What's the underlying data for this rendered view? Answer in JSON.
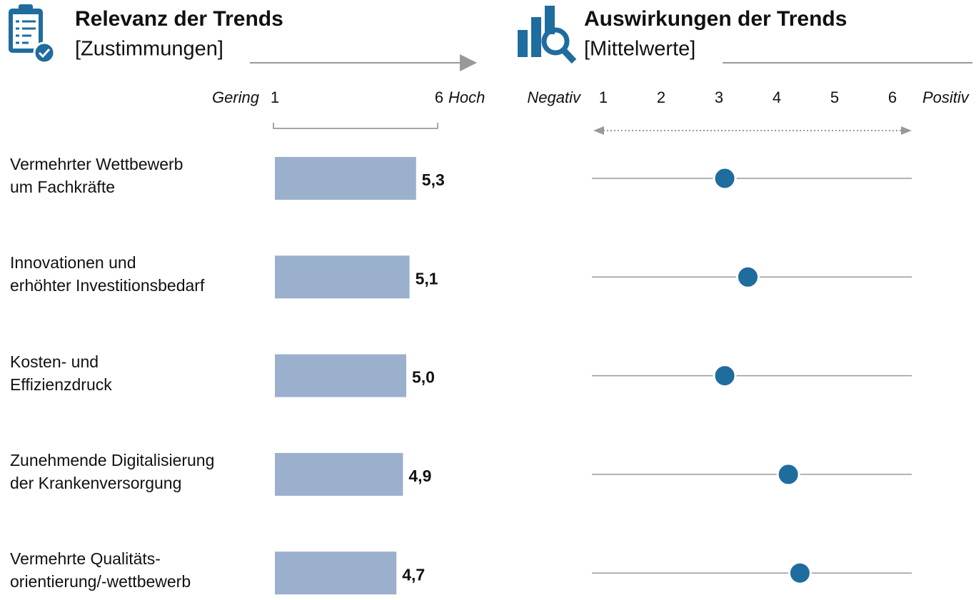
{
  "chart_data": [
    {
      "type": "bar",
      "orientation": "horizontal",
      "title": "Relevanz der Trends",
      "subtitle": "[Zustimmungen]",
      "xlabel_low": "Gering",
      "xlabel_high": "Hoch",
      "categories": [
        "Vermehrter Wettbewerb\num Fachkräfte",
        "Innovationen und\nerhöhter Investitionsbedarf",
        "Kosten- und\nEffizienzdruck",
        "Zunehmende Digitalisierung\nder Krankenversorgung",
        "Vermehrte Qualitäts-\norientierung/-wettbewerb"
      ],
      "values": [
        5.3,
        5.1,
        5.0,
        4.9,
        4.7
      ],
      "value_labels": [
        "5,3",
        "5,1",
        "5,0",
        "4,9",
        "4,7"
      ],
      "color": "#9ab0cc",
      "xlim": [
        1,
        6
      ],
      "xticks": [
        1,
        6
      ]
    },
    {
      "type": "dot",
      "title": "Auswirkungen der Trends",
      "subtitle": "[Mittelwerte]",
      "xlabel_low": "Negativ",
      "xlabel_high": "Positiv",
      "values": [
        3.1,
        3.5,
        3.1,
        4.2,
        4.4
      ],
      "color": "#1f6c9e",
      "xlim": [
        1,
        6
      ],
      "xticks": [
        1,
        2,
        3,
        4,
        5,
        6
      ]
    }
  ]
}
